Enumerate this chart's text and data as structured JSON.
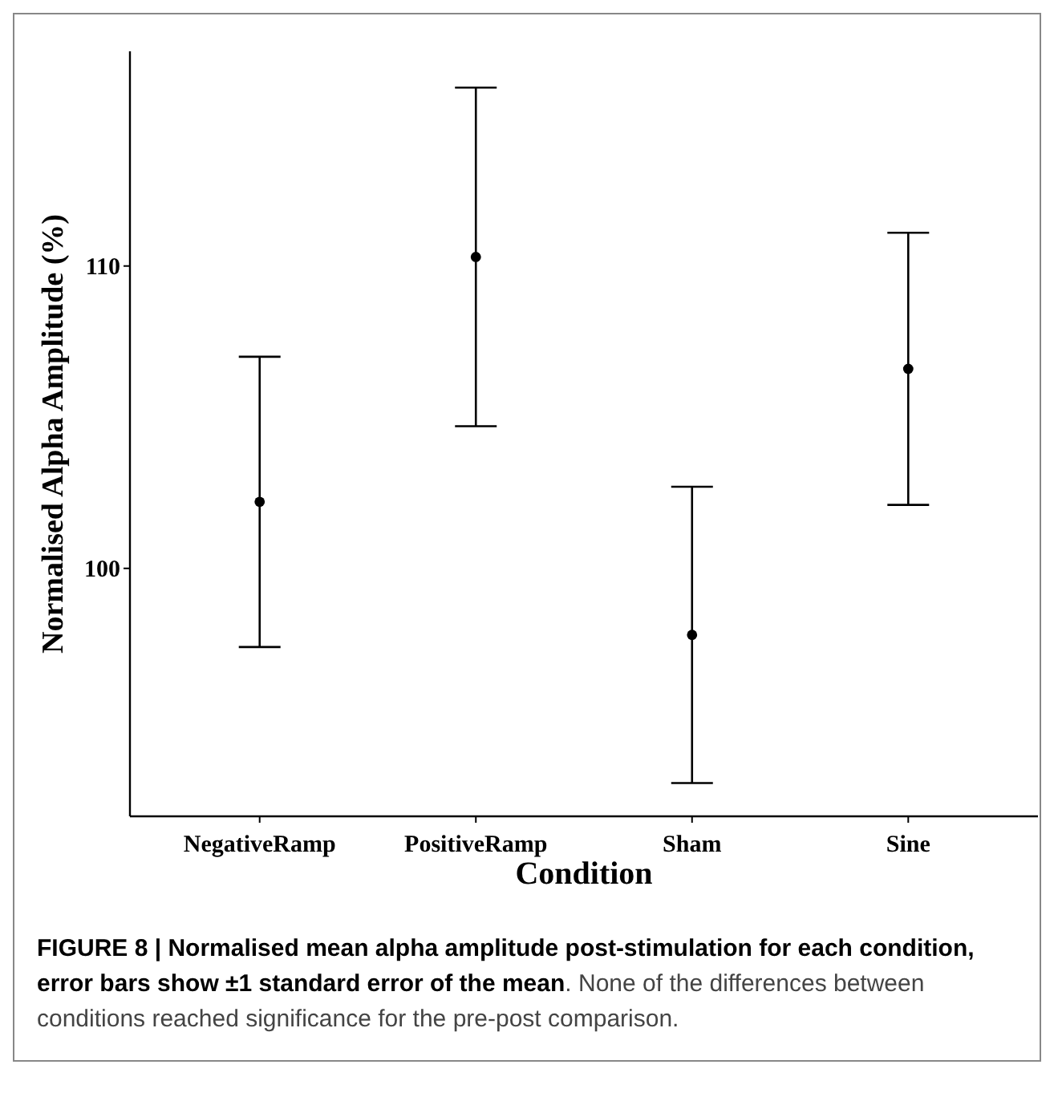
{
  "chart_data": {
    "type": "scatter",
    "xlabel": "Condition",
    "ylabel": "Normalised Alpha Amplitude (%)",
    "categories": [
      "NegativeRamp",
      "PositiveRamp",
      "Sham",
      "Sine"
    ],
    "values": [
      102.2,
      110.3,
      97.8,
      106.6
    ],
    "errors": [
      4.8,
      5.6,
      4.9,
      4.5
    ],
    "color": "#000000",
    "marker": "circle",
    "ylim": [
      91.8,
      117.1
    ],
    "yticks": [
      100,
      110
    ],
    "annotations": [
      "FIGURE 8 | Normalised mean alpha amplitude post-stimulation for each condition, error bars show ±1 standard error of the mean",
      ". None of the differences between conditions reached significance for the pre-post comparison."
    ]
  }
}
